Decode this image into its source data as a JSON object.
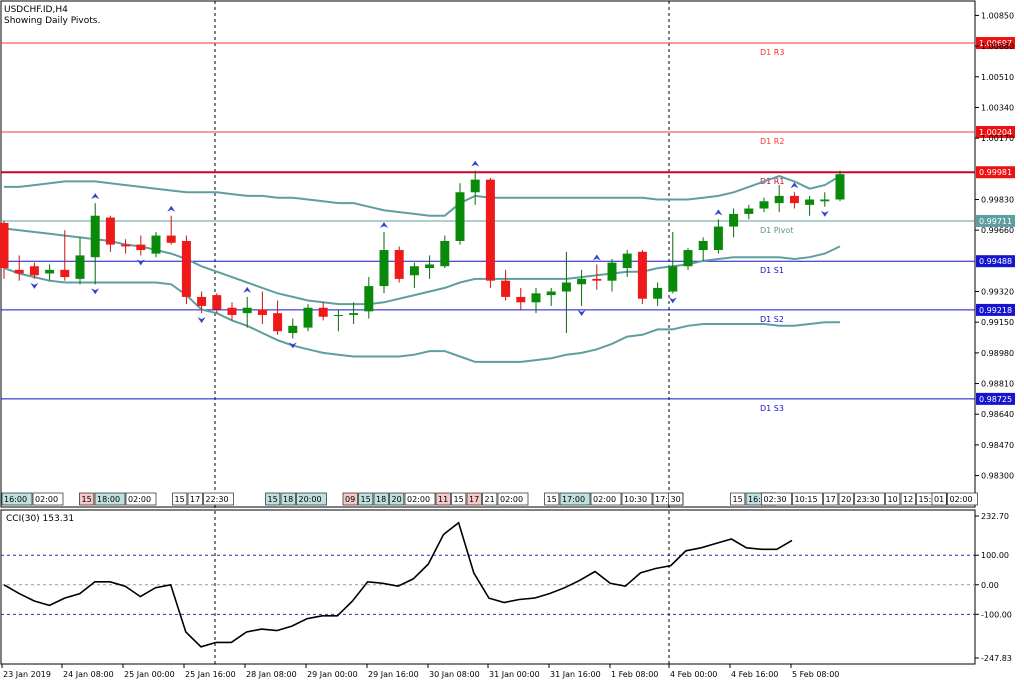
{
  "header": {
    "symbol": "USDCHF.ID,H4",
    "subtitle": "Showing Daily Pivots."
  },
  "colors": {
    "bull": "#0a8a0a",
    "bear": "#ee1a1a",
    "band": "#5f9ea0",
    "resistance": "#ff3333",
    "support": "#1515d0",
    "pivot": "#5f9ea0",
    "arrow": "#3344cc"
  },
  "chart_data": [
    {
      "type": "candlestick",
      "ylim": [
        0.9822,
        1.0093
      ],
      "y_ticks": [
        "1.00850",
        "1.00680",
        "1.00510",
        "1.00340",
        "1.00170",
        "0.99830",
        "0.99660",
        "0.99320",
        "0.99150",
        "0.98980",
        "0.98810",
        "0.98640",
        "0.98470",
        "0.98300"
      ],
      "pivot_levels": [
        {
          "name": "D1 R3",
          "value": 1.00697,
          "label": "1.00697",
          "kind": "resistance"
        },
        {
          "name": "D1 R2",
          "value": 1.00204,
          "label": "1.00204",
          "kind": "resistance"
        },
        {
          "name": "D1 R1",
          "value": 0.99981,
          "label": "0.99981",
          "kind": "r1"
        },
        {
          "name": "D1 Pivot",
          "value": 0.99711,
          "label": "0.99711",
          "kind": "pivot"
        },
        {
          "name": "D1 S1",
          "value": 0.99488,
          "label": "0.99488",
          "kind": "support"
        },
        {
          "name": "D1 S2",
          "value": 0.99218,
          "label": "0.99218",
          "kind": "support"
        },
        {
          "name": "D1 S3",
          "value": 0.98725,
          "label": "0.98725",
          "kind": "support"
        }
      ],
      "candles": [
        {
          "o": 0.997,
          "h": 0.9971,
          "l": 0.9939,
          "c": 0.9945
        },
        {
          "o": 0.9944,
          "h": 0.9952,
          "l": 0.9938,
          "c": 0.9942
        },
        {
          "o": 0.9946,
          "h": 0.9948,
          "l": 0.9939,
          "c": 0.9941
        },
        {
          "o": 0.9942,
          "h": 0.9947,
          "l": 0.9938,
          "c": 0.9944
        },
        {
          "o": 0.9944,
          "h": 0.9966,
          "l": 0.9938,
          "c": 0.994
        },
        {
          "o": 0.9939,
          "h": 0.9962,
          "l": 0.9936,
          "c": 0.9952
        },
        {
          "o": 0.9951,
          "h": 0.9981,
          "l": 0.9936,
          "c": 0.9974
        },
        {
          "o": 0.9973,
          "h": 0.9974,
          "l": 0.9954,
          "c": 0.9958
        },
        {
          "o": 0.9958,
          "h": 0.9961,
          "l": 0.9953,
          "c": 0.9957
        },
        {
          "o": 0.9958,
          "h": 0.9963,
          "l": 0.9952,
          "c": 0.9955
        },
        {
          "o": 0.9953,
          "h": 0.9965,
          "l": 0.9951,
          "c": 0.9963
        },
        {
          "o": 0.9963,
          "h": 0.9974,
          "l": 0.9958,
          "c": 0.9959
        },
        {
          "o": 0.996,
          "h": 0.9963,
          "l": 0.9925,
          "c": 0.9929
        },
        {
          "o": 0.9929,
          "h": 0.9932,
          "l": 0.992,
          "c": 0.9924
        },
        {
          "o": 0.993,
          "h": 0.9931,
          "l": 0.992,
          "c": 0.9922
        },
        {
          "o": 0.9923,
          "h": 0.9926,
          "l": 0.9916,
          "c": 0.9919
        },
        {
          "o": 0.992,
          "h": 0.9929,
          "l": 0.9912,
          "c": 0.9923
        },
        {
          "o": 0.9922,
          "h": 0.9932,
          "l": 0.9914,
          "c": 0.9919
        },
        {
          "o": 0.992,
          "h": 0.9927,
          "l": 0.9908,
          "c": 0.991
        },
        {
          "o": 0.9909,
          "h": 0.9917,
          "l": 0.9906,
          "c": 0.9913
        },
        {
          "o": 0.9912,
          "h": 0.9925,
          "l": 0.991,
          "c": 0.9923
        },
        {
          "o": 0.9923,
          "h": 0.9926,
          "l": 0.9916,
          "c": 0.9918
        },
        {
          "o": 0.9919,
          "h": 0.9922,
          "l": 0.991,
          "c": 0.9919
        },
        {
          "o": 0.9919,
          "h": 0.9926,
          "l": 0.9914,
          "c": 0.992
        },
        {
          "o": 0.9921,
          "h": 0.994,
          "l": 0.9917,
          "c": 0.9935
        },
        {
          "o": 0.9935,
          "h": 0.9965,
          "l": 0.9931,
          "c": 0.9955
        },
        {
          "o": 0.9955,
          "h": 0.9957,
          "l": 0.9937,
          "c": 0.9939
        },
        {
          "o": 0.9941,
          "h": 0.9948,
          "l": 0.9934,
          "c": 0.9946
        },
        {
          "o": 0.9945,
          "h": 0.9952,
          "l": 0.9939,
          "c": 0.9947
        },
        {
          "o": 0.9946,
          "h": 0.9963,
          "l": 0.9945,
          "c": 0.996
        },
        {
          "o": 0.996,
          "h": 0.9992,
          "l": 0.9958,
          "c": 0.9987
        },
        {
          "o": 0.9987,
          "h": 0.9999,
          "l": 0.998,
          "c": 0.9994
        },
        {
          "o": 0.9994,
          "h": 0.9995,
          "l": 0.9934,
          "c": 0.9938
        },
        {
          "o": 0.9938,
          "h": 0.9944,
          "l": 0.9927,
          "c": 0.9929
        },
        {
          "o": 0.9929,
          "h": 0.9934,
          "l": 0.9922,
          "c": 0.9926
        },
        {
          "o": 0.9926,
          "h": 0.9934,
          "l": 0.992,
          "c": 0.9931
        },
        {
          "o": 0.993,
          "h": 0.9934,
          "l": 0.9924,
          "c": 0.9932
        },
        {
          "o": 0.9932,
          "h": 0.9954,
          "l": 0.9909,
          "c": 0.9937
        },
        {
          "o": 0.9936,
          "h": 0.9944,
          "l": 0.9924,
          "c": 0.9939
        },
        {
          "o": 0.9939,
          "h": 0.9947,
          "l": 0.9933,
          "c": 0.9938
        },
        {
          "o": 0.9938,
          "h": 0.995,
          "l": 0.9932,
          "c": 0.9948
        },
        {
          "o": 0.9945,
          "h": 0.9955,
          "l": 0.994,
          "c": 0.9953
        },
        {
          "o": 0.9954,
          "h": 0.9955,
          "l": 0.9925,
          "c": 0.9928
        },
        {
          "o": 0.9928,
          "h": 0.9937,
          "l": 0.9924,
          "c": 0.9934
        },
        {
          "o": 0.9932,
          "h": 0.9965,
          "l": 0.9931,
          "c": 0.9946
        },
        {
          "o": 0.9946,
          "h": 0.9956,
          "l": 0.9944,
          "c": 0.9955
        },
        {
          "o": 0.9955,
          "h": 0.9962,
          "l": 0.9949,
          "c": 0.996
        },
        {
          "o": 0.9955,
          "h": 0.9972,
          "l": 0.9953,
          "c": 0.9968
        },
        {
          "o": 0.9968,
          "h": 0.9978,
          "l": 0.9962,
          "c": 0.9975
        },
        {
          "o": 0.9975,
          "h": 0.998,
          "l": 0.9972,
          "c": 0.9978
        },
        {
          "o": 0.9978,
          "h": 0.9984,
          "l": 0.9976,
          "c": 0.9982
        },
        {
          "o": 0.9981,
          "h": 0.9991,
          "l": 0.9976,
          "c": 0.9985
        },
        {
          "o": 0.9985,
          "h": 0.9987,
          "l": 0.9978,
          "c": 0.9981
        },
        {
          "o": 0.998,
          "h": 0.9985,
          "l": 0.9974,
          "c": 0.9983
        },
        {
          "o": 0.9982,
          "h": 0.9987,
          "l": 0.9979,
          "c": 0.9983
        },
        {
          "o": 0.9983,
          "h": 0.9999,
          "l": 0.9982,
          "c": 0.9997
        }
      ],
      "bollinger_upper": [
        0.999,
        0.999,
        0.9991,
        0.9992,
        0.9993,
        0.9993,
        0.9993,
        0.9992,
        0.9991,
        0.999,
        0.9989,
        0.9988,
        0.9987,
        0.9987,
        0.9987,
        0.9986,
        0.9985,
        0.9985,
        0.9984,
        0.9984,
        0.9983,
        0.9982,
        0.9981,
        0.9981,
        0.9979,
        0.9977,
        0.9976,
        0.9975,
        0.9974,
        0.9974,
        0.9981,
        0.9985,
        0.9984,
        0.9984,
        0.9984,
        0.9984,
        0.9984,
        0.9984,
        0.9984,
        0.9984,
        0.9984,
        0.9984,
        0.9984,
        0.9983,
        0.9983,
        0.9983,
        0.9984,
        0.9985,
        0.9987,
        0.999,
        0.9993,
        0.9996,
        0.9993,
        0.9989,
        0.9991,
        0.9996
      ],
      "bollinger_lower": [
        0.9945,
        0.9942,
        0.994,
        0.9938,
        0.9937,
        0.9937,
        0.9937,
        0.9937,
        0.9937,
        0.9937,
        0.9937,
        0.9936,
        0.993,
        0.9922,
        0.992,
        0.9916,
        0.9913,
        0.9909,
        0.9905,
        0.9902,
        0.99,
        0.9898,
        0.9897,
        0.9896,
        0.9896,
        0.9896,
        0.9896,
        0.9897,
        0.9899,
        0.9899,
        0.9896,
        0.9893,
        0.9893,
        0.9893,
        0.9893,
        0.9894,
        0.9895,
        0.9897,
        0.9898,
        0.99,
        0.9903,
        0.9907,
        0.9908,
        0.9911,
        0.9911,
        0.9913,
        0.9914,
        0.9914,
        0.9914,
        0.9914,
        0.9914,
        0.9913,
        0.9913,
        0.9914,
        0.9915,
        0.9915
      ],
      "bollinger_middle": [
        0.9967,
        0.9966,
        0.9965,
        0.9964,
        0.9963,
        0.9962,
        0.9961,
        0.996,
        0.9958,
        0.9957,
        0.9955,
        0.9953,
        0.995,
        0.9946,
        0.9943,
        0.994,
        0.9937,
        0.9934,
        0.9931,
        0.9929,
        0.9927,
        0.9926,
        0.9925,
        0.9925,
        0.9925,
        0.9926,
        0.9928,
        0.993,
        0.9932,
        0.9934,
        0.9937,
        0.9939,
        0.9939,
        0.9939,
        0.9939,
        0.9939,
        0.9939,
        0.9939,
        0.994,
        0.9941,
        0.9942,
        0.9943,
        0.9943,
        0.9945,
        0.9946,
        0.9947,
        0.9949,
        0.995,
        0.9951,
        0.9951,
        0.9951,
        0.9951,
        0.995,
        0.9951,
        0.9953,
        0.9957
      ],
      "fractals_up": [
        6,
        11,
        16,
        25,
        31,
        39,
        47,
        52
      ],
      "fractals_down": [
        2,
        6,
        9,
        13,
        19,
        38,
        44,
        54
      ],
      "time_tags": [
        {
          "idx": 0,
          "text": "16:00",
          "style": "teal"
        },
        {
          "idx": 2,
          "text": "02:00",
          "style": "plain"
        },
        {
          "idx": 5,
          "text": "15",
          "style": "red"
        },
        {
          "idx": 6,
          "text": "18:00",
          "style": "teal"
        },
        {
          "idx": 8,
          "text": "02:00",
          "style": "plain"
        },
        {
          "idx": 11,
          "text": "15",
          "style": "plain"
        },
        {
          "idx": 12,
          "text": "17",
          "style": "plain"
        },
        {
          "idx": 13,
          "text": "22:30",
          "style": "plain"
        },
        {
          "idx": 17,
          "text": "15",
          "style": "teal"
        },
        {
          "idx": 18,
          "text": "18",
          "style": "teal"
        },
        {
          "idx": 19,
          "text": "20:00",
          "style": "teal"
        },
        {
          "idx": 22,
          "text": "09",
          "style": "red"
        },
        {
          "idx": 23,
          "text": "15",
          "style": "teal"
        },
        {
          "idx": 24,
          "text": "18",
          "style": "teal"
        },
        {
          "idx": 25,
          "text": "20",
          "style": "teal"
        },
        {
          "idx": 26,
          "text": "02:00",
          "style": "plain"
        },
        {
          "idx": 28,
          "text": "11",
          "style": "red"
        },
        {
          "idx": 29,
          "text": "15",
          "style": "plain"
        },
        {
          "idx": 30,
          "text": "17",
          "style": "red"
        },
        {
          "idx": 31,
          "text": "21",
          "style": "plain"
        },
        {
          "idx": 32,
          "text": "02:00",
          "style": "plain"
        },
        {
          "idx": 35,
          "text": "15",
          "style": "plain"
        },
        {
          "idx": 36,
          "text": "17:00",
          "style": "teal"
        },
        {
          "idx": 38,
          "text": "02:00",
          "style": "plain"
        },
        {
          "idx": 40,
          "text": "10:30",
          "style": "plain"
        },
        {
          "idx": 42,
          "text": "17:00",
          "style": "plain"
        },
        {
          "idx": 43,
          "text": "30",
          "style": "plain"
        },
        {
          "idx": 47,
          "text": "15",
          "style": "plain"
        },
        {
          "idx": 48,
          "text": "16:45",
          "style": "teal"
        },
        {
          "idx": 49,
          "text": "02:30",
          "style": "plain"
        },
        {
          "idx": 51,
          "text": "10:15",
          "style": "plain"
        },
        {
          "idx": 53,
          "text": "17",
          "style": "plain"
        },
        {
          "idx": 54,
          "text": "20",
          "style": "plain"
        },
        {
          "idx": 55,
          "text": "23:30",
          "style": "plain"
        },
        {
          "idx": 57,
          "text": "10",
          "style": "plain"
        },
        {
          "idx": 58,
          "text": "12",
          "style": "plain"
        },
        {
          "idx": 59,
          "text": "15:30",
          "style": "plain"
        },
        {
          "idx": 60,
          "text": "01",
          "style": "plain"
        },
        {
          "idx": 61,
          "text": "02:00",
          "style": "plain"
        }
      ]
    },
    {
      "type": "line",
      "title": "CCI(30) 153.31",
      "ylim": [
        -247.83,
        232.7
      ],
      "y_ticks": [
        "232.70",
        "100.00",
        "0.00",
        "-100.00",
        "-247.83"
      ],
      "levels": [
        100,
        0,
        -100
      ],
      "values": [
        0,
        -30,
        -55,
        -70,
        -45,
        -30,
        10,
        10,
        -5,
        -40,
        -10,
        0,
        -160,
        -210,
        -195,
        -195,
        -160,
        -150,
        -155,
        -140,
        -115,
        -105,
        -105,
        -55,
        10,
        5,
        -5,
        20,
        70,
        170,
        210,
        40,
        -45,
        -60,
        -50,
        -45,
        -30,
        -10,
        15,
        45,
        5,
        -5,
        40,
        55,
        65,
        115,
        125,
        140,
        155,
        125,
        120,
        120,
        150
      ],
      "x_labels": [
        "23 Jan 2019",
        "24 Jan 08:00",
        "25 Jan 00:00",
        "25 Jan 16:00",
        "28 Jan 08:00",
        "29 Jan 00:00",
        "29 Jan 16:00",
        "30 Jan 08:00",
        "31 Jan 00:00",
        "31 Jan 16:00",
        "1 Feb 08:00",
        "4 Feb 00:00",
        "4 Feb 16:00",
        "5 Feb 08:00"
      ]
    }
  ]
}
